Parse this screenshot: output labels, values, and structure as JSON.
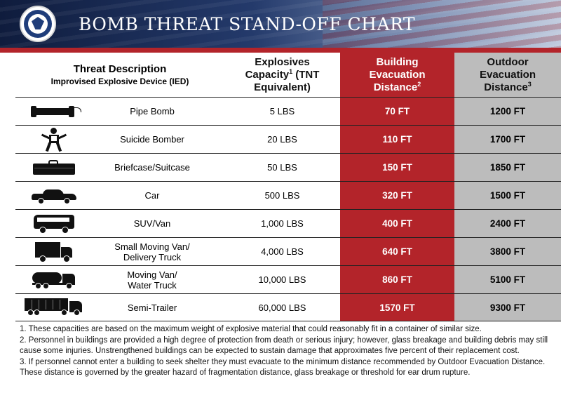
{
  "banner": {
    "title": "BOMB THREAT STAND-OFF CHART",
    "seal_text": "U.S. DEPARTMENT OF HOMELAND SECURITY"
  },
  "header": {
    "description_title": "Threat Description",
    "description_sub": "Improvised Explosive Device (IED)",
    "capacity_a": "Explosives",
    "capacity_b": "Capacity",
    "capacity_sup": "1",
    "capacity_c": " (TNT",
    "capacity_d": "Equivalent)",
    "building_a": "Building",
    "building_b": "Evacuation",
    "building_c": "Distance",
    "building_sup": "2",
    "outdoor_a": "Outdoor",
    "outdoor_b": "Evacuation",
    "outdoor_c": "Distance",
    "outdoor_sup": "3"
  },
  "colors": {
    "building_column": "#b3242a",
    "outdoor_column": "#bcbcbc",
    "banner_rule": "#b3242a"
  },
  "rows": [
    {
      "icon": "pipe-bomb-icon",
      "name": "Pipe Bomb",
      "name2": "",
      "capacity": "5 LBS",
      "building": "70 FT",
      "outdoor": "1200 FT"
    },
    {
      "icon": "suicide-bomber-icon",
      "name": "Suicide Bomber",
      "name2": "",
      "capacity": "20 LBS",
      "building": "110 FT",
      "outdoor": "1700 FT"
    },
    {
      "icon": "briefcase-icon",
      "name": "Briefcase/Suitcase",
      "name2": "",
      "capacity": "50 LBS",
      "building": "150 FT",
      "outdoor": "1850 FT"
    },
    {
      "icon": "car-icon",
      "name": "Car",
      "name2": "",
      "capacity": "500 LBS",
      "building": "320 FT",
      "outdoor": "1500 FT"
    },
    {
      "icon": "suv-van-icon",
      "name": "SUV/Van",
      "name2": "",
      "capacity": "1,000 LBS",
      "building": "400 FT",
      "outdoor": "2400 FT"
    },
    {
      "icon": "delivery-truck-icon",
      "name": "Small Moving Van/",
      "name2": "Delivery Truck",
      "capacity": "4,000 LBS",
      "building": "640 FT",
      "outdoor": "3800 FT"
    },
    {
      "icon": "water-truck-icon",
      "name": "Moving Van/",
      "name2": "Water Truck",
      "capacity": "10,000 LBS",
      "building": "860 FT",
      "outdoor": "5100 FT"
    },
    {
      "icon": "semi-trailer-icon",
      "name": "Semi-Trailer",
      "name2": "",
      "capacity": "60,000 LBS",
      "building": "1570 FT",
      "outdoor": "9300 FT"
    }
  ],
  "footnotes": [
    "1. These capacities are based on the maximum weight of explosive material that could reasonably fit in a container of similar size.",
    "2. Personnel in buildings are provided a high degree of protection from death or serious injury; however,  glass breakage and building debris may still cause some injuries. Unstrengthened buildings can be expected to sustain damage that approximates five percent of their replacement cost.",
    "3.  If personnel cannot enter a building to seek shelter they must evacuate to the minimum distance recommended by Outdoor Evacuation Distance. These distance is governed by the greater hazard of fragmentation distance, glass breakage or threshold for ear drum rupture."
  ]
}
